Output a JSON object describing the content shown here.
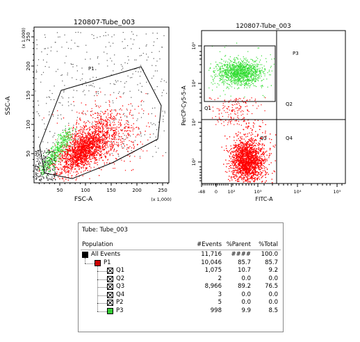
{
  "plot1": {
    "title": "120807-Tube_003",
    "xlabel": "FSC-A",
    "ylabel": "SSC-A",
    "x_multiplier": "(x 1,000)",
    "y_multiplier": "(x 1,000)",
    "gate_label": "P1",
    "x_ticks": [
      "50",
      "100",
      "150",
      "200",
      "250"
    ],
    "y_ticks": [
      "50",
      "100",
      "150",
      "200",
      "250"
    ]
  },
  "plot2": {
    "title": "120807-Tube_003",
    "xlabel": "FITC-A",
    "ylabel": "PerCP-Cy5-5-A",
    "gate_label": "P3",
    "quadrant_labels": [
      "Q1",
      "Q2",
      "Q3",
      "Q4"
    ],
    "x_ticks": [
      "-48",
      "0",
      "10²",
      "10³",
      "10⁴",
      "10⁵"
    ],
    "y_ticks": [
      "10²",
      "10³",
      "10⁴",
      "10⁵"
    ]
  },
  "stats": {
    "tube_label": "Tube:  Tube_003",
    "headers": {
      "population": "Population",
      "events": "#Events",
      "parent": "%Parent",
      "total": "%Total"
    },
    "rows": [
      {
        "name": "All Events",
        "events": "11,716",
        "parent": "####",
        "total": "100.0"
      },
      {
        "name": "P1",
        "events": "10,046",
        "parent": "85.7",
        "total": "85.7"
      },
      {
        "name": "Q1",
        "events": "1,075",
        "parent": "10.7",
        "total": "9.2"
      },
      {
        "name": "Q2",
        "events": "2",
        "parent": "0.0",
        "total": "0.0"
      },
      {
        "name": "Q3",
        "events": "8,966",
        "parent": "89.2",
        "total": "76.5"
      },
      {
        "name": "Q4",
        "events": "3",
        "parent": "0.0",
        "total": "0.0"
      },
      {
        "name": "P2",
        "events": "5",
        "parent": "0.0",
        "total": "0.0"
      },
      {
        "name": "P3",
        "events": "998",
        "parent": "9.9",
        "total": "8.5"
      }
    ]
  },
  "colors": {
    "all_events": "#000000",
    "p1": "#cc0000",
    "p3": "#33cc33",
    "red_dots": "#ff0000",
    "green_dots": "#33dd33"
  },
  "chart_data": [
    {
      "type": "scatter",
      "title": "120807-Tube_003",
      "xlabel": "FSC-A",
      "ylabel": "SSC-A",
      "xlim": [
        0,
        262
      ],
      "ylim": [
        0,
        262
      ],
      "gates": [
        "P1"
      ]
    },
    {
      "type": "scatter",
      "title": "120807-Tube_003",
      "xlabel": "FITC-A",
      "ylabel": "PerCP-Cy5-5-A",
      "gates": [
        "P3",
        "Q1",
        "Q2",
        "Q3",
        "Q4"
      ]
    }
  ]
}
